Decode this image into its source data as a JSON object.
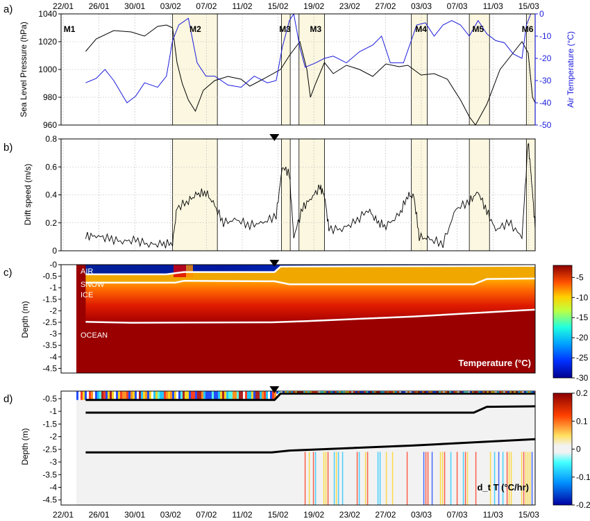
{
  "x_dates": [
    "22/01",
    "26/01",
    "30/01",
    "03/02",
    "07/02",
    "11/02",
    "15/02",
    "19/02",
    "23/02",
    "27/02",
    "03/03",
    "07/03",
    "11/03",
    "15/03"
  ],
  "event_markers_x": [
    24.3
  ],
  "chart_data": [
    {
      "panel": "a)",
      "type": "line",
      "xlim": [
        0,
        54
      ],
      "ylabel": "Sea Level Pressure (hPa)",
      "ylabel_right": "Air Temperature (°C)",
      "ylim": [
        960,
        1040
      ],
      "ylim_right": [
        -50,
        0
      ],
      "yticks": [
        960,
        980,
        1000,
        1020,
        1040
      ],
      "yticks_right": [
        -50,
        -40,
        -30,
        -20,
        -10,
        0
      ],
      "right_axis_color": "#1a1adb",
      "grid": true,
      "events": [
        {
          "name": "M1",
          "start": 0,
          "end": 0,
          "label_x": 0.3
        },
        {
          "name": "M2",
          "start": 12.7,
          "end": 17.8,
          "label_x": 15.3
        },
        {
          "name": "M3",
          "start": 25.1,
          "end": 26.1,
          "label_x": 25.5
        },
        {
          "name": "M3",
          "start": 27.1,
          "end": 30.0,
          "label_x": 29.0
        },
        {
          "name": "M4",
          "start": 39.9,
          "end": 41.7,
          "label_x": 41.0
        },
        {
          "name": "M5",
          "start": 46.5,
          "end": 48.8,
          "label_x": 47.5
        },
        {
          "name": "M6",
          "start": 53.0,
          "end": 54.0,
          "label_x": 53.8
        }
      ],
      "event_fill_color": "#fbf7e0",
      "series": [
        {
          "axis": "left",
          "color": "#000000",
          "points": [
            [
              2.8,
              1013
            ],
            [
              4,
              1022
            ],
            [
              6,
              1028
            ],
            [
              8,
              1027
            ],
            [
              9.5,
              1024
            ],
            [
              11,
              1031
            ],
            [
              12,
              1032
            ],
            [
              12.7,
              1030
            ],
            [
              13.2,
              1005
            ],
            [
              13.8,
              990
            ],
            [
              14.5,
              978
            ],
            [
              15.3,
              970
            ],
            [
              16.2,
              985
            ],
            [
              17.5,
              992
            ],
            [
              19,
              995
            ],
            [
              20.5,
              993
            ],
            [
              21.5,
              988
            ],
            [
              23,
              993
            ],
            [
              25,
              1000
            ],
            [
              26,
              1010
            ],
            [
              27.2,
              1020
            ],
            [
              28,
              1000
            ],
            [
              28.4,
              980
            ],
            [
              29,
              990
            ],
            [
              30,
              1005
            ],
            [
              31,
              997
            ],
            [
              32.5,
              1003
            ],
            [
              34,
              1000
            ],
            [
              35.5,
              995
            ],
            [
              37,
              1004
            ],
            [
              38.5,
              1002
            ],
            [
              39.5,
              1003
            ],
            [
              41,
              996
            ],
            [
              42.5,
              997
            ],
            [
              44,
              993
            ],
            [
              45.5,
              978
            ],
            [
              46.5,
              966
            ],
            [
              47.2,
              960
            ],
            [
              48.5,
              975
            ],
            [
              50,
              1000
            ],
            [
              51.5,
              1012
            ],
            [
              52.5,
              1020
            ],
            [
              53.2,
              1012
            ],
            [
              53.7,
              980
            ],
            [
              54,
              976
            ]
          ]
        },
        {
          "axis": "right",
          "color": "#1a1adb",
          "points": [
            [
              2.8,
              -31
            ],
            [
              4,
              -29
            ],
            [
              5,
              -25
            ],
            [
              6,
              -30
            ],
            [
              7.5,
              -40
            ],
            [
              8.5,
              -37
            ],
            [
              9.5,
              -31
            ],
            [
              11,
              -33
            ],
            [
              12,
              -28
            ],
            [
              12.7,
              -12
            ],
            [
              13.4,
              -5
            ],
            [
              14.5,
              -2
            ],
            [
              15.5,
              -22
            ],
            [
              16.5,
              -28
            ],
            [
              17.5,
              -28
            ],
            [
              19,
              -32
            ],
            [
              20.5,
              -33
            ],
            [
              22,
              -28
            ],
            [
              23.5,
              -31
            ],
            [
              24.5,
              -30
            ],
            [
              25.2,
              -15
            ],
            [
              26,
              -3
            ],
            [
              26.5,
              0
            ],
            [
              27.2,
              -15
            ],
            [
              27.8,
              -24
            ],
            [
              29,
              -22
            ],
            [
              30,
              -20
            ],
            [
              31,
              -19
            ],
            [
              32.5,
              -22
            ],
            [
              34,
              -17
            ],
            [
              35.5,
              -14
            ],
            [
              36.5,
              -10
            ],
            [
              37.5,
              -22
            ],
            [
              39,
              -22
            ],
            [
              40.5,
              -5
            ],
            [
              41.5,
              -4
            ],
            [
              42.5,
              -10
            ],
            [
              43.5,
              -5
            ],
            [
              44.5,
              -3
            ],
            [
              45.5,
              -5
            ],
            [
              46.5,
              -10
            ],
            [
              47.5,
              -3
            ],
            [
              48.5,
              -9
            ],
            [
              49.5,
              -12
            ],
            [
              50.5,
              -13
            ],
            [
              51.5,
              -18
            ],
            [
              52.5,
              -20
            ],
            [
              53,
              -5
            ],
            [
              53.5,
              0
            ],
            [
              54,
              0
            ]
          ]
        }
      ]
    },
    {
      "panel": "b)",
      "type": "line",
      "xlim": [
        0,
        54
      ],
      "ylabel": "Drift speed (m/s)",
      "ylim": [
        0,
        0.8
      ],
      "yticks": [
        0,
        0.2,
        0.4,
        0.6,
        0.8
      ],
      "grid": true,
      "series": [
        {
          "color": "#000000",
          "points": [
            [
              2.8,
              0.1
            ],
            [
              4,
              0.11
            ],
            [
              5.5,
              0.08
            ],
            [
              7,
              0.07
            ],
            [
              8.5,
              0.07
            ],
            [
              10,
              0.05
            ],
            [
              11.5,
              0.04
            ],
            [
              12.7,
              0.06
            ],
            [
              13.2,
              0.3
            ],
            [
              14.5,
              0.36
            ],
            [
              15.5,
              0.4
            ],
            [
              16.5,
              0.42
            ],
            [
              17.5,
              0.32
            ],
            [
              18.5,
              0.2
            ],
            [
              20,
              0.22
            ],
            [
              21.5,
              0.18
            ],
            [
              23,
              0.2
            ],
            [
              24.5,
              0.25
            ],
            [
              25.2,
              0.6
            ],
            [
              26,
              0.55
            ],
            [
              26.5,
              0.1
            ],
            [
              27.5,
              0.3
            ],
            [
              28.5,
              0.38
            ],
            [
              29.5,
              0.45
            ],
            [
              30,
              0.4
            ],
            [
              30.5,
              0.15
            ],
            [
              32,
              0.16
            ],
            [
              33.5,
              0.2
            ],
            [
              35,
              0.3
            ],
            [
              36,
              0.2
            ],
            [
              37,
              0.18
            ],
            [
              38.5,
              0.25
            ],
            [
              39.5,
              0.4
            ],
            [
              40.2,
              0.38
            ],
            [
              40.8,
              0.1
            ],
            [
              42,
              0.08
            ],
            [
              43.5,
              0.05
            ],
            [
              45,
              0.3
            ],
            [
              46.5,
              0.35
            ],
            [
              47.5,
              0.42
            ],
            [
              48.5,
              0.28
            ],
            [
              49.5,
              0.15
            ],
            [
              51,
              0.2
            ],
            [
              52.5,
              0.1
            ],
            [
              53.2,
              0.78
            ],
            [
              53.6,
              0.5
            ],
            [
              54,
              0.15
            ]
          ]
        }
      ]
    },
    {
      "panel": "c)",
      "type": "heatmap",
      "xlim": [
        0,
        54
      ],
      "ylabel": "Depth (m)",
      "ylim": [
        -4.7,
        0
      ],
      "yticks": [
        0,
        -0.5,
        -1,
        -1.5,
        -2,
        -2.5,
        -3,
        -3.5,
        -4,
        -4.5
      ],
      "ytick_labels": [
        "-0",
        "-0.5",
        "-1",
        "-1.5",
        "-2",
        "-2.5",
        "-3",
        "-3.5",
        "-4",
        "-4.5"
      ],
      "layer_labels": [
        "AIR",
        "SNOW",
        "ICE",
        "OCEAN"
      ],
      "colorbar_title": "Temperature (°C)",
      "colorbar_ticks": [
        -5,
        -10,
        -15,
        -20,
        -25,
        -30
      ],
      "colorbar_range": [
        -30,
        -2
      ],
      "interfaces": [
        {
          "name": "snow_surface",
          "points": [
            [
              2.8,
              -0.42
            ],
            [
              12,
              -0.42
            ],
            [
              14,
              -0.32
            ],
            [
              24.3,
              -0.32
            ],
            [
              25,
              -0.08
            ],
            [
              54,
              -0.05
            ]
          ]
        },
        {
          "name": "ice_surface",
          "points": [
            [
              2.8,
              -0.78
            ],
            [
              13,
              -0.78
            ],
            [
              14,
              -0.7
            ],
            [
              24.3,
              -0.72
            ],
            [
              26,
              -0.85
            ],
            [
              47,
              -0.85
            ],
            [
              48.5,
              -0.62
            ],
            [
              54,
              -0.6
            ]
          ]
        },
        {
          "name": "ice_bottom",
          "points": [
            [
              2.8,
              -2.48
            ],
            [
              8,
              -2.52
            ],
            [
              24,
              -2.5
            ],
            [
              28,
              -2.45
            ],
            [
              40,
              -2.25
            ],
            [
              54,
              -1.95
            ]
          ]
        }
      ]
    },
    {
      "panel": "d)",
      "type": "heatmap",
      "xlim": [
        0,
        54
      ],
      "ylabel": "Depth (m)",
      "ylim": [
        -4.7,
        -0.2
      ],
      "yticks": [
        -0.5,
        -1,
        -1.5,
        -2,
        -2.5,
        -3,
        -3.5,
        -4,
        -4.5
      ],
      "colorbar_title": "d_t T (°C/hr)",
      "colorbar_ticks": [
        0.2,
        0.1,
        0,
        -0.1,
        -0.2
      ],
      "colorbar_range": [
        -0.2,
        0.2
      ],
      "interfaces": [
        {
          "name": "snow_surface",
          "points": [
            [
              2.8,
              -0.55
            ],
            [
              24.3,
              -0.55
            ],
            [
              25,
              -0.3
            ],
            [
              54,
              -0.3
            ]
          ]
        },
        {
          "name": "ice_surface",
          "points": [
            [
              2.8,
              -1.05
            ],
            [
              13,
              -1.05
            ],
            [
              47,
              -1.05
            ],
            [
              48.5,
              -0.82
            ],
            [
              54,
              -0.8
            ]
          ]
        },
        {
          "name": "ice_bottom",
          "points": [
            [
              2.8,
              -2.62
            ],
            [
              24,
              -2.62
            ],
            [
              26,
              -2.55
            ],
            [
              40,
              -2.35
            ],
            [
              54,
              -2.1
            ]
          ]
        }
      ]
    }
  ]
}
